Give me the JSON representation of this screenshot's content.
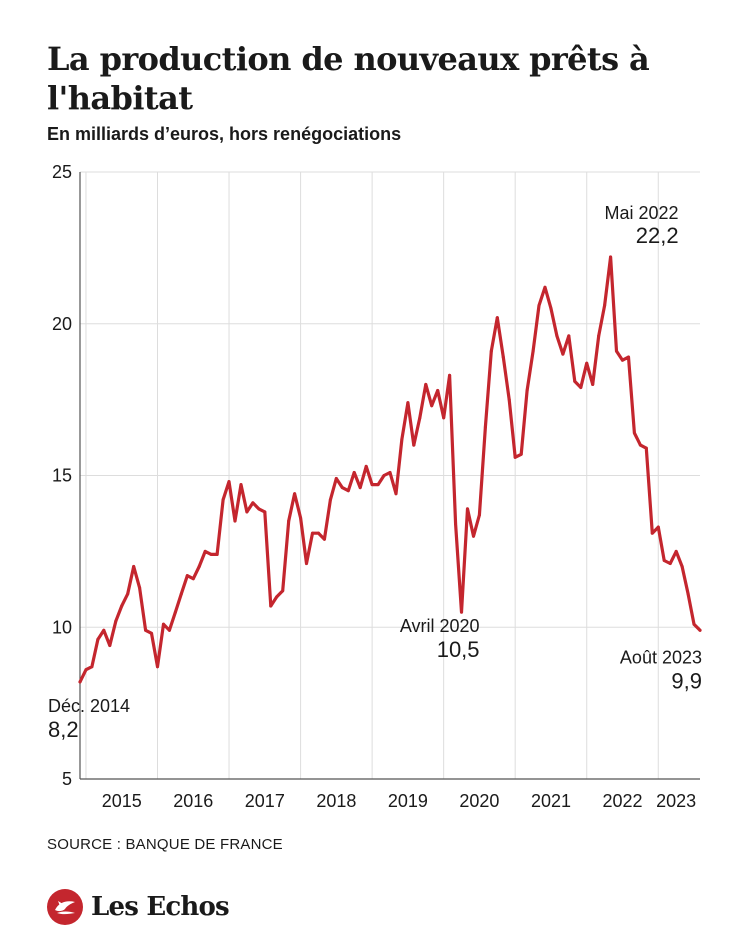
{
  "header": {
    "title": "La production de nouveaux prêts à l'habitat",
    "subtitle": "En milliards d’euros, hors renégociations"
  },
  "footer": {
    "source": "SOURCE : BANQUE DE FRANCE",
    "brand": "Les Echos",
    "brand_icon": "les-echos-logo-icon"
  },
  "colors": {
    "line": "#c4262e",
    "grid": "#dddddd",
    "text": "#1a1a1a",
    "brand": "#c4262e"
  },
  "chart_data": {
    "type": "line",
    "title": "La production de nouveaux prêts à l'habitat",
    "subtitle": "En milliards d’euros, hors renégociations",
    "xlabel": "",
    "ylabel": "",
    "ylim": [
      5,
      25
    ],
    "yticks": [
      5,
      10,
      15,
      20,
      25
    ],
    "xlim": [
      "2014-12",
      "2023-08"
    ],
    "xticks": [
      {
        "label": "2015",
        "date": "2015-07"
      },
      {
        "label": "2016",
        "date": "2016-07"
      },
      {
        "label": "2017",
        "date": "2017-07"
      },
      {
        "label": "2018",
        "date": "2018-07"
      },
      {
        "label": "2019",
        "date": "2019-07"
      },
      {
        "label": "2020",
        "date": "2020-07"
      },
      {
        "label": "2021",
        "date": "2021-07"
      },
      {
        "label": "2022",
        "date": "2022-07"
      },
      {
        "label": "2023",
        "date": "2023-04"
      }
    ],
    "grid": true,
    "series": [
      {
        "values": [
          {
            "x": "2014-12",
            "y": 8.2
          },
          {
            "x": "2015-01",
            "y": 8.6
          },
          {
            "x": "2015-02",
            "y": 8.7
          },
          {
            "x": "2015-03",
            "y": 9.6
          },
          {
            "x": "2015-04",
            "y": 9.9
          },
          {
            "x": "2015-05",
            "y": 9.4
          },
          {
            "x": "2015-06",
            "y": 10.2
          },
          {
            "x": "2015-07",
            "y": 10.7
          },
          {
            "x": "2015-08",
            "y": 11.1
          },
          {
            "x": "2015-09",
            "y": 12.0
          },
          {
            "x": "2015-10",
            "y": 11.3
          },
          {
            "x": "2015-11",
            "y": 9.9
          },
          {
            "x": "2015-12",
            "y": 9.8
          },
          {
            "x": "2016-01",
            "y": 8.7
          },
          {
            "x": "2016-02",
            "y": 10.1
          },
          {
            "x": "2016-03",
            "y": 9.9
          },
          {
            "x": "2016-04",
            "y": 10.5
          },
          {
            "x": "2016-05",
            "y": 11.1
          },
          {
            "x": "2016-06",
            "y": 11.7
          },
          {
            "x": "2016-07",
            "y": 11.6
          },
          {
            "x": "2016-08",
            "y": 12.0
          },
          {
            "x": "2016-09",
            "y": 12.5
          },
          {
            "x": "2016-10",
            "y": 12.4
          },
          {
            "x": "2016-11",
            "y": 12.4
          },
          {
            "x": "2016-12",
            "y": 14.2
          },
          {
            "x": "2017-01",
            "y": 14.8
          },
          {
            "x": "2017-02",
            "y": 13.5
          },
          {
            "x": "2017-03",
            "y": 14.7
          },
          {
            "x": "2017-04",
            "y": 13.8
          },
          {
            "x": "2017-05",
            "y": 14.1
          },
          {
            "x": "2017-06",
            "y": 13.9
          },
          {
            "x": "2017-07",
            "y": 13.8
          },
          {
            "x": "2017-08",
            "y": 10.7
          },
          {
            "x": "2017-09",
            "y": 11.0
          },
          {
            "x": "2017-10",
            "y": 11.2
          },
          {
            "x": "2017-11",
            "y": 13.5
          },
          {
            "x": "2017-12",
            "y": 14.4
          },
          {
            "x": "2018-01",
            "y": 13.6
          },
          {
            "x": "2018-02",
            "y": 12.1
          },
          {
            "x": "2018-03",
            "y": 13.1
          },
          {
            "x": "2018-04",
            "y": 13.1
          },
          {
            "x": "2018-05",
            "y": 12.9
          },
          {
            "x": "2018-06",
            "y": 14.2
          },
          {
            "x": "2018-07",
            "y": 14.9
          },
          {
            "x": "2018-08",
            "y": 14.6
          },
          {
            "x": "2018-09",
            "y": 14.5
          },
          {
            "x": "2018-10",
            "y": 15.1
          },
          {
            "x": "2018-11",
            "y": 14.6
          },
          {
            "x": "2018-12",
            "y": 15.3
          },
          {
            "x": "2019-01",
            "y": 14.7
          },
          {
            "x": "2019-02",
            "y": 14.7
          },
          {
            "x": "2019-03",
            "y": 15.0
          },
          {
            "x": "2019-04",
            "y": 15.1
          },
          {
            "x": "2019-05",
            "y": 14.4
          },
          {
            "x": "2019-06",
            "y": 16.2
          },
          {
            "x": "2019-07",
            "y": 17.4
          },
          {
            "x": "2019-08",
            "y": 16.0
          },
          {
            "x": "2019-09",
            "y": 16.9
          },
          {
            "x": "2019-10",
            "y": 18.0
          },
          {
            "x": "2019-11",
            "y": 17.3
          },
          {
            "x": "2019-12",
            "y": 17.8
          },
          {
            "x": "2020-01",
            "y": 16.9
          },
          {
            "x": "2020-02",
            "y": 18.3
          },
          {
            "x": "2020-03",
            "y": 13.4
          },
          {
            "x": "2020-04",
            "y": 10.5
          },
          {
            "x": "2020-05",
            "y": 13.9
          },
          {
            "x": "2020-06",
            "y": 13.0
          },
          {
            "x": "2020-07",
            "y": 13.7
          },
          {
            "x": "2020-08",
            "y": 16.6
          },
          {
            "x": "2020-09",
            "y": 19.1
          },
          {
            "x": "2020-10",
            "y": 20.2
          },
          {
            "x": "2020-11",
            "y": 18.9
          },
          {
            "x": "2020-12",
            "y": 17.5
          },
          {
            "x": "2021-01",
            "y": 15.6
          },
          {
            "x": "2021-02",
            "y": 15.7
          },
          {
            "x": "2021-03",
            "y": 17.8
          },
          {
            "x": "2021-04",
            "y": 19.1
          },
          {
            "x": "2021-05",
            "y": 20.6
          },
          {
            "x": "2021-06",
            "y": 21.2
          },
          {
            "x": "2021-07",
            "y": 20.5
          },
          {
            "x": "2021-08",
            "y": 19.6
          },
          {
            "x": "2021-09",
            "y": 19.0
          },
          {
            "x": "2021-10",
            "y": 19.6
          },
          {
            "x": "2021-11",
            "y": 18.1
          },
          {
            "x": "2021-12",
            "y": 17.9
          },
          {
            "x": "2022-01",
            "y": 18.7
          },
          {
            "x": "2022-02",
            "y": 18.0
          },
          {
            "x": "2022-03",
            "y": 19.6
          },
          {
            "x": "2022-04",
            "y": 20.6
          },
          {
            "x": "2022-05",
            "y": 22.2
          },
          {
            "x": "2022-06",
            "y": 19.1
          },
          {
            "x": "2022-07",
            "y": 18.8
          },
          {
            "x": "2022-08",
            "y": 18.9
          },
          {
            "x": "2022-09",
            "y": 16.4
          },
          {
            "x": "2022-10",
            "y": 16.0
          },
          {
            "x": "2022-11",
            "y": 15.9
          },
          {
            "x": "2022-12",
            "y": 13.1
          },
          {
            "x": "2023-01",
            "y": 13.3
          },
          {
            "x": "2023-02",
            "y": 12.2
          },
          {
            "x": "2023-03",
            "y": 12.1
          },
          {
            "x": "2023-04",
            "y": 12.5
          },
          {
            "x": "2023-05",
            "y": 12.0
          },
          {
            "x": "2023-06",
            "y": 11.1
          },
          {
            "x": "2023-07",
            "y": 10.1
          },
          {
            "x": "2023-08",
            "y": 9.9
          }
        ]
      }
    ],
    "annotations": [
      {
        "label": "Déc. 2014",
        "value": "8,2",
        "x": "2014-12",
        "y": 8.2,
        "anchor": "start",
        "position": "below"
      },
      {
        "label": "Avril 2020",
        "value": "10,5",
        "x": "2020-04",
        "y": 10.5,
        "anchor": "end",
        "position": "below"
      },
      {
        "label": "Mai 2022",
        "value": "22,2",
        "x": "2022-05",
        "y": 22.2,
        "anchor": "end",
        "position": "above"
      },
      {
        "label": "Août 2023",
        "value": "9,9",
        "x": "2023-08",
        "y": 9.9,
        "anchor": "end",
        "position": "below"
      }
    ]
  }
}
